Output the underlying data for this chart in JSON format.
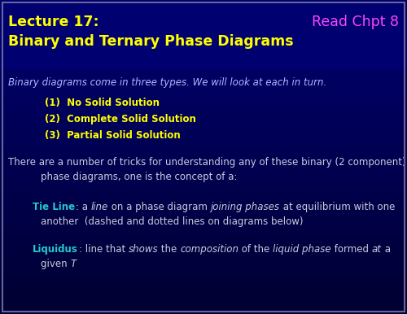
{
  "bg_top": "#00006A",
  "bg_bottom": "#000050",
  "bg_gradient_top": "#000080",
  "bg_gradient_bottom": "#00003A",
  "header_bg": "#00006E",
  "title_line1": "Lecture 17:",
  "title_line2": "Binary and Ternary Phase Diagrams",
  "title_color": "#FFFF00",
  "read_text": "Read Chpt 8",
  "read_color": "#FF44FF",
  "italic_intro": "Binary diagrams come in three types. We will look at each in turn.",
  "italic_color": "#B0B8FF",
  "items": [
    "(1)  No Solid Solution",
    "(2)  Complete Solid Solution",
    "(3)  Partial Solid Solution"
  ],
  "item_color": "#FFFF00",
  "body_color": "#CCCCDD",
  "tieline_color": "#22CCCC",
  "liquidus_color": "#22CCCC",
  "white": "#CCCCDD",
  "figsize": [
    5.0,
    3.86
  ],
  "dpi": 100
}
